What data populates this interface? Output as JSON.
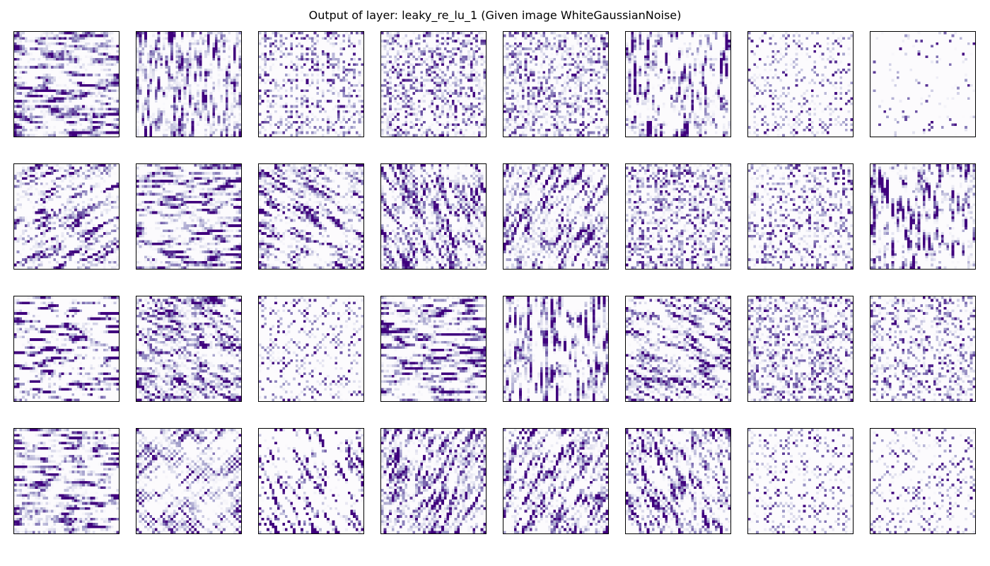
{
  "title": "Output of layer: leaky_re_lu_1 (Given image WhiteGaussianNoise)",
  "chart_data": {
    "type": "heatmap",
    "title": "Output of layer: leaky_re_lu_1 (Given image WhiteGaussianNoise)",
    "layer": "leaky_re_lu_1",
    "input_image": "WhiteGaussianNoise",
    "rows": 4,
    "cols": 8,
    "panel_resolution": 40,
    "colormap": "Purples",
    "colormap_low": "#fcfbfd",
    "colormap_high": "#3f007d",
    "axes_ticks": false,
    "feature_maps": [
      {
        "index": 0,
        "pattern": "dashes",
        "angle_deg": 0,
        "density": 0.62
      },
      {
        "index": 1,
        "pattern": "dashes",
        "angle_deg": 90,
        "density": 0.6
      },
      {
        "index": 2,
        "pattern": "grid",
        "angle_deg": 0,
        "density": 0.5
      },
      {
        "index": 3,
        "pattern": "speckle",
        "angle_deg": 0,
        "density": 0.5
      },
      {
        "index": 4,
        "pattern": "speckle",
        "angle_deg": 0,
        "density": 0.5
      },
      {
        "index": 5,
        "pattern": "dashes",
        "angle_deg": 90,
        "density": 0.45
      },
      {
        "index": 6,
        "pattern": "checker",
        "angle_deg": 0,
        "density": 0.48
      },
      {
        "index": 7,
        "pattern": "sparse",
        "angle_deg": 0,
        "density": 0.22
      },
      {
        "index": 8,
        "pattern": "diagonal",
        "angle_deg": 150,
        "density": 0.55
      },
      {
        "index": 9,
        "pattern": "dashes",
        "angle_deg": 10,
        "density": 0.6
      },
      {
        "index": 10,
        "pattern": "diagonal",
        "angle_deg": 30,
        "density": 0.58
      },
      {
        "index": 11,
        "pattern": "diagonal",
        "angle_deg": 75,
        "density": 0.58
      },
      {
        "index": 12,
        "pattern": "diagonal",
        "angle_deg": 120,
        "density": 0.6
      },
      {
        "index": 13,
        "pattern": "speckle",
        "angle_deg": 0,
        "density": 0.52
      },
      {
        "index": 14,
        "pattern": "speckle",
        "angle_deg": 0,
        "density": 0.4
      },
      {
        "index": 15,
        "pattern": "dashes",
        "angle_deg": 80,
        "density": 0.45
      },
      {
        "index": 16,
        "pattern": "dashes",
        "angle_deg": 0,
        "density": 0.42
      },
      {
        "index": 17,
        "pattern": "dashes",
        "angle_deg": 20,
        "density": 0.65
      },
      {
        "index": 18,
        "pattern": "checker",
        "angle_deg": 0,
        "density": 0.45
      },
      {
        "index": 19,
        "pattern": "diagonal",
        "angle_deg": 10,
        "density": 0.55
      },
      {
        "index": 20,
        "pattern": "diagonal",
        "angle_deg": 80,
        "density": 0.5
      },
      {
        "index": 21,
        "pattern": "diagonal",
        "angle_deg": 30,
        "density": 0.58
      },
      {
        "index": 22,
        "pattern": "speckle",
        "angle_deg": 0,
        "density": 0.52
      },
      {
        "index": 23,
        "pattern": "speckle",
        "angle_deg": 0,
        "density": 0.4
      },
      {
        "index": 24,
        "pattern": "dashes",
        "angle_deg": 0,
        "density": 0.58
      },
      {
        "index": 25,
        "pattern": "crosshatch",
        "angle_deg": 45,
        "density": 0.5
      },
      {
        "index": 26,
        "pattern": "diagonal",
        "angle_deg": 60,
        "density": 0.3
      },
      {
        "index": 27,
        "pattern": "diagonal",
        "angle_deg": 120,
        "density": 0.58
      },
      {
        "index": 28,
        "pattern": "diagonal",
        "angle_deg": 120,
        "density": 0.55
      },
      {
        "index": 29,
        "pattern": "dashes",
        "angle_deg": 70,
        "density": 0.5
      },
      {
        "index": 30,
        "pattern": "checker",
        "angle_deg": 0,
        "density": 0.45
      },
      {
        "index": 31,
        "pattern": "checker",
        "angle_deg": 0,
        "density": 0.42
      }
    ]
  }
}
